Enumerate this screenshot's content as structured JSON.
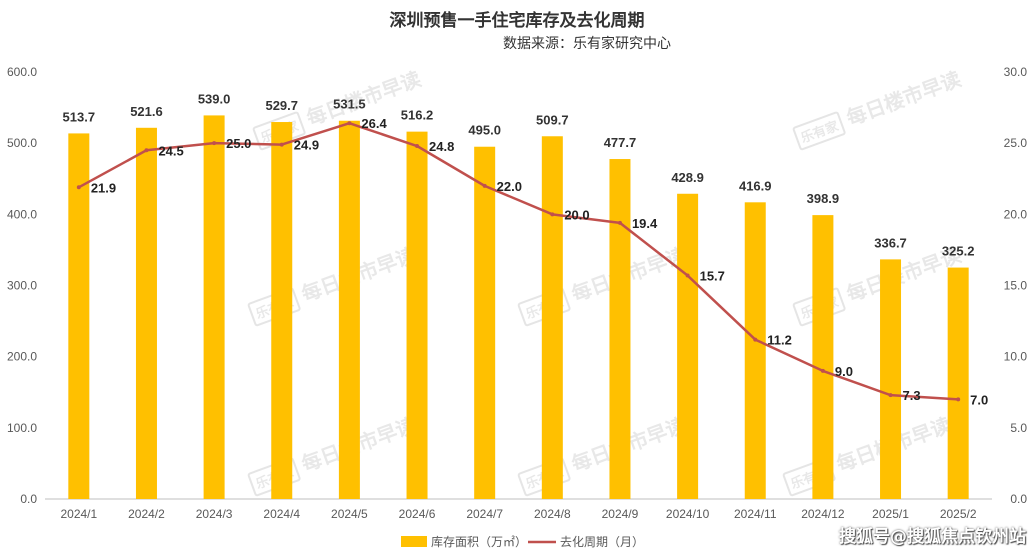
{
  "header": {
    "title": "深圳预售一手住宅库存及去化周期",
    "subtitle": "数据来源：乐有家研究中心"
  },
  "watermark": {
    "logo": "乐有家",
    "text": "每日楼市早读"
  },
  "source_tag": "搜狐号@搜狐焦点钦州站",
  "colors": {
    "bar": "#FFC000",
    "line": "#C0504D",
    "axis_text": "#595959",
    "axis_line": "#BFBFBF"
  },
  "chart_data": {
    "type": "bar",
    "title": "深圳预售一手住宅库存及去化周期",
    "categories": [
      "2024/1",
      "2024/2",
      "2024/3",
      "2024/4",
      "2024/5",
      "2024/6",
      "2024/7",
      "2024/8",
      "2024/9",
      "2024/10",
      "2024/11",
      "2024/12",
      "2025/1",
      "2025/2"
    ],
    "series": [
      {
        "name": "库存面积（万㎡）",
        "type": "bar",
        "axis": "left",
        "values": [
          513.7,
          521.6,
          539.0,
          529.7,
          531.5,
          516.2,
          495.0,
          509.7,
          477.7,
          428.9,
          416.9,
          398.9,
          336.7,
          325.2
        ],
        "labels": [
          "513.7",
          "521.6",
          "539.0",
          "529.7",
          "531.5",
          "516.2",
          "495.0",
          "509.7",
          "477.7",
          "428.9",
          "416.9",
          "398.9",
          "336.7",
          "325.2"
        ]
      },
      {
        "name": "去化周期（月）",
        "type": "line",
        "axis": "right",
        "values": [
          21.9,
          24.5,
          25.0,
          24.9,
          26.4,
          24.8,
          22.0,
          20.0,
          19.4,
          15.7,
          11.2,
          9.0,
          7.3,
          7.0
        ],
        "labels": [
          "21.9",
          "24.5",
          "25.0",
          "24.9",
          "26.4",
          "24.8",
          "22.0",
          "20.0",
          "19.4",
          "15.7",
          "11.2",
          "9.0",
          "7.3",
          "7.0"
        ]
      }
    ],
    "left_axis": {
      "ylim": [
        0,
        600
      ],
      "ticks": [
        "0.0",
        "100.0",
        "200.0",
        "300.0",
        "400.0",
        "500.0",
        "600.0"
      ]
    },
    "right_axis": {
      "ylim": [
        0,
        30
      ],
      "ticks": [
        "0.0",
        "5.0",
        "10.0",
        "15.0",
        "20.0",
        "25.0",
        "30.0"
      ]
    },
    "legend": {
      "position": "bottom",
      "items": [
        "库存面积（万㎡）",
        "去化周期（月）"
      ]
    },
    "grid": false
  }
}
